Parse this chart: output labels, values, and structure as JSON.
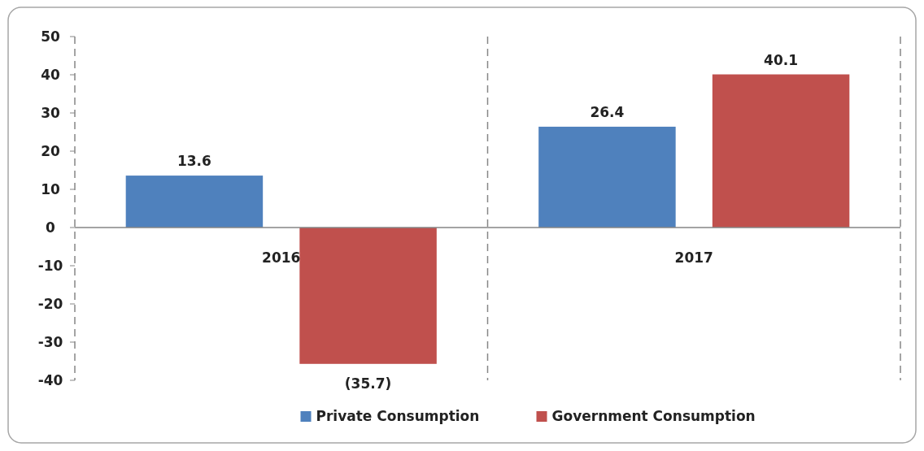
{
  "chart_data": {
    "type": "bar",
    "categories": [
      "2016",
      "2017"
    ],
    "series": [
      {
        "name": "Private Consumption",
        "color": "#4f81bd",
        "values": [
          13.6,
          26.4
        ],
        "value_labels": [
          "13.6",
          "26.4"
        ]
      },
      {
        "name": "Government Consumption",
        "color": "#c0504d",
        "values": [
          -35.7,
          40.1
        ],
        "value_labels": [
          "(35.7)",
          "40.1"
        ]
      }
    ],
    "ylim": [
      -40,
      50
    ],
    "yticks": [
      -40,
      -30,
      -20,
      -10,
      0,
      10,
      20,
      30,
      40,
      50
    ],
    "grid": false,
    "legend": "bottom"
  }
}
